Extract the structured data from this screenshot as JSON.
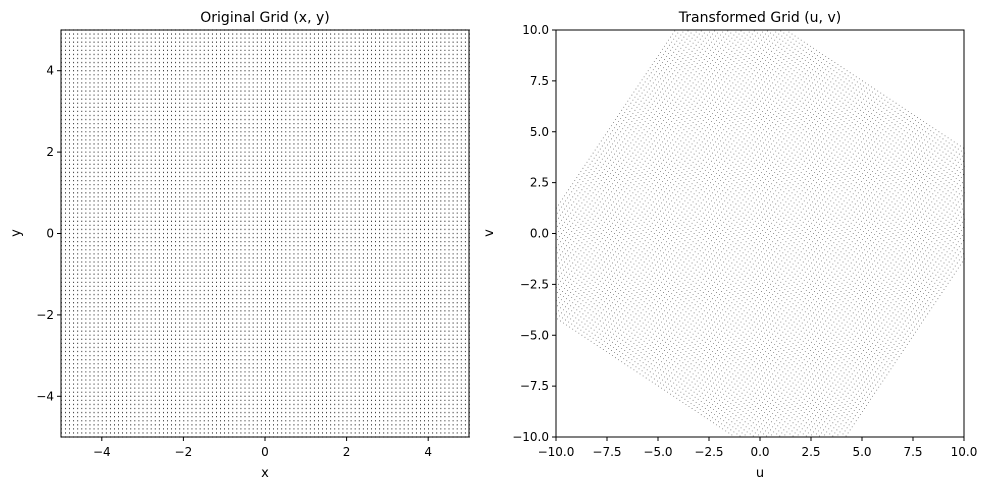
{
  "chart_data": [
    {
      "type": "scatter",
      "title": "Original Grid (x, y)",
      "xlabel": "x",
      "ylabel": "y",
      "xlim": [
        -5,
        5
      ],
      "ylim": [
        -5,
        5
      ],
      "xticks": [
        -4,
        -2,
        0,
        2,
        4
      ],
      "yticks": [
        -4,
        -2,
        0,
        2,
        4
      ],
      "xtick_labels": [
        "−4",
        "−2",
        "0",
        "2",
        "4"
      ],
      "ytick_labels": [
        "−4",
        "−2",
        "0",
        "2",
        "4"
      ],
      "grid": false,
      "marker_color": "#000000",
      "points": "regular grid of points, x and y each from -5 to 5 with step 0.1",
      "grid_points": {
        "x_start": -5,
        "x_end": 5,
        "y_start": -5,
        "y_end": 5,
        "count_per_axis": 101
      }
    },
    {
      "type": "scatter",
      "title": "Transformed Grid (u, v)",
      "xlabel": "u",
      "ylabel": "v",
      "xlim": [
        -10,
        10
      ],
      "ylim": [
        -10,
        10
      ],
      "xticks": [
        -10,
        -7.5,
        -5,
        -2.5,
        0,
        2.5,
        5,
        7.5,
        10
      ],
      "yticks": [
        -10,
        -7.5,
        -5,
        -2.5,
        0,
        2.5,
        5,
        7.5,
        10
      ],
      "xtick_labels": [
        "−10.0",
        "−7.5",
        "−5.0",
        "−2.5",
        "0.0",
        "2.5",
        "5.0",
        "7.5",
        "10.0"
      ],
      "ytick_labels": [
        "−10.0",
        "−7.5",
        "−5.0",
        "−2.5",
        "0.0",
        "2.5",
        "5.0",
        "7.5",
        "10.0"
      ],
      "grid": false,
      "marker_color": "#000000",
      "transform": {
        "u": "x + 1.5*y",
        "v": "1.5*x - y"
      },
      "points": "original grid mapped by linear transform u = x + 1.5y, v = 1.5x - y"
    }
  ]
}
